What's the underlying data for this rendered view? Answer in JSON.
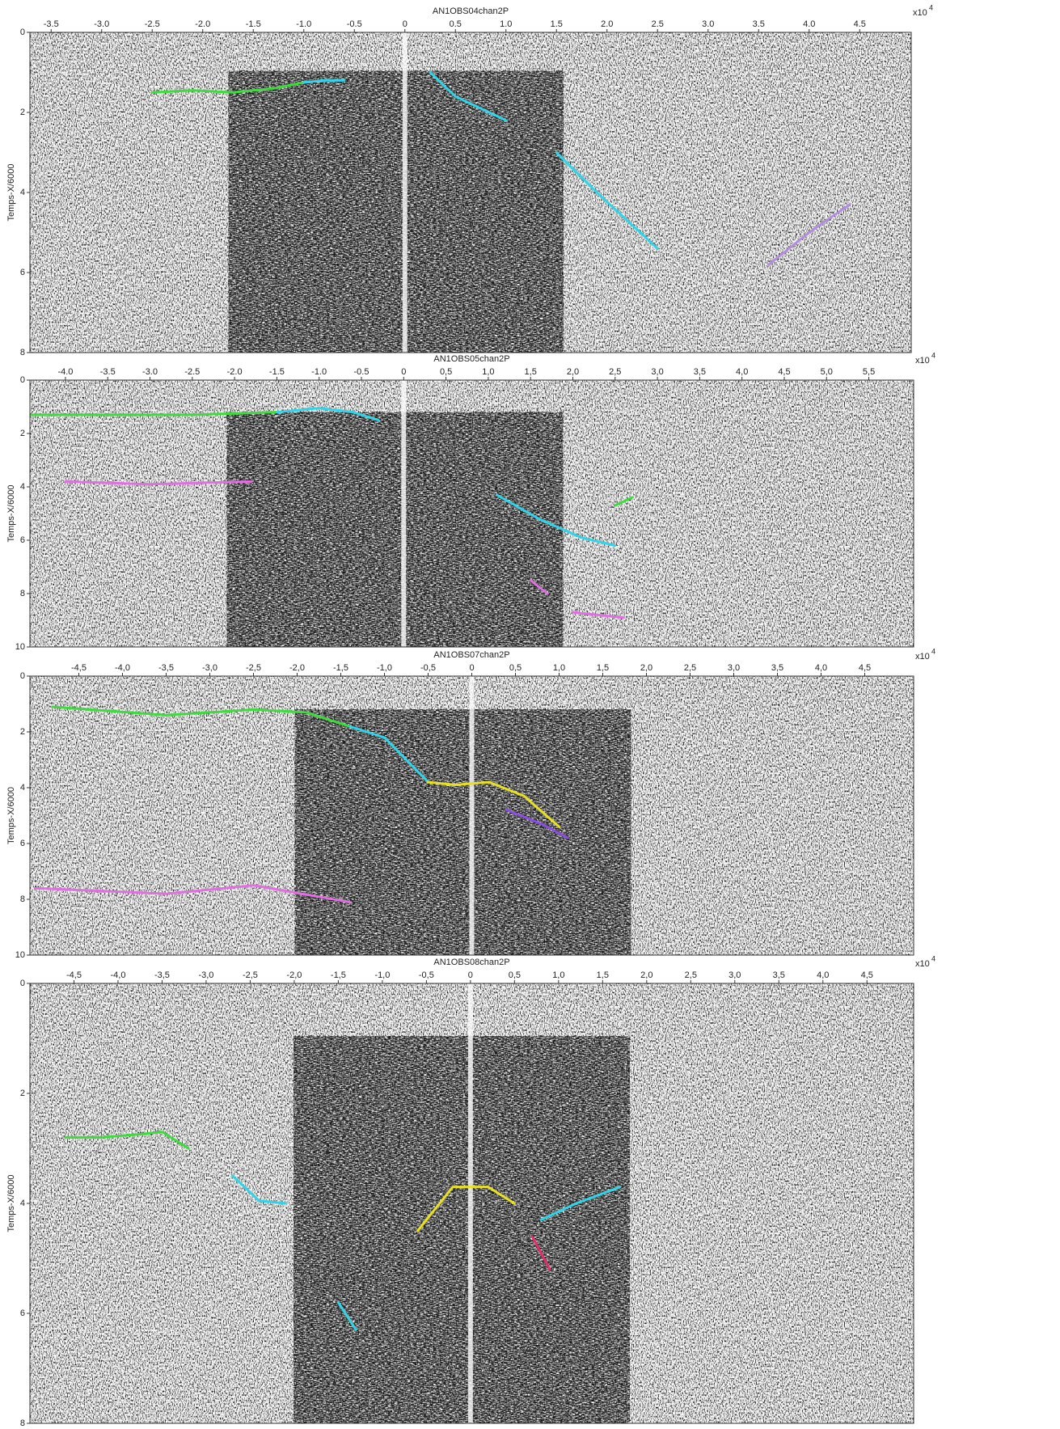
{
  "chart_data": [
    {
      "type": "line",
      "title": "AN1OBS04chan2P",
      "ylabel": "Temps-X/6000",
      "x_scale": "x10",
      "x_scale_exp": "4",
      "xlim": [
        -3.71,
        5.01
      ],
      "ylim": [
        8,
        0
      ],
      "xticks": [
        -3.5,
        {
          "value": -3,
          "label": "-3.0"
        },
        -2.5,
        {
          "value": -2,
          "label": "-2.0"
        },
        -1.5,
        {
          "value": -1,
          "label": "-1.0"
        },
        -0.5,
        0,
        0.5,
        {
          "value": 1,
          "label": "1.0"
        },
        1.5,
        {
          "value": 2,
          "label": "2.0"
        },
        2.5,
        {
          "value": 3,
          "label": "3.0"
        },
        3.5,
        {
          "value": 4,
          "label": "4.0"
        },
        4.5
      ],
      "yticks": [
        0,
        2,
        4,
        6,
        8
      ],
      "series": [
        {
          "color": "#3ddc3d",
          "x": [
            -2.5,
            -2.1,
            -1.7,
            -1.3,
            -1.0
          ],
          "values": [
            1.5,
            1.45,
            1.5,
            1.4,
            1.25
          ]
        },
        {
          "color": "#2fd4e8",
          "x": [
            -1.0,
            -0.8,
            -0.6
          ],
          "values": [
            1.25,
            1.2,
            1.2
          ]
        },
        {
          "color": "#2fd4e8",
          "x": [
            0.25,
            0.5,
            0.75,
            1.0
          ],
          "values": [
            1.0,
            1.6,
            1.9,
            2.2
          ]
        },
        {
          "color": "#2fd4e8",
          "x": [
            1.5,
            1.9,
            2.2,
            2.5
          ],
          "values": [
            3.0,
            4.0,
            4.7,
            5.4
          ]
        },
        {
          "color": "#b38de0",
          "x": [
            3.6,
            4.0,
            4.4
          ],
          "values": [
            5.8,
            5.0,
            4.3
          ]
        }
      ]
    },
    {
      "type": "line",
      "title": "AN1OBS05chan2P",
      "ylabel": "Temps-X/6000",
      "x_scale": "x10",
      "x_scale_exp": "4",
      "xlim": [
        -4.42,
        6.03
      ],
      "ylim": [
        10,
        0
      ],
      "xticks": [
        {
          "value": -4,
          "label": "-4.0"
        },
        -3.5,
        {
          "value": -3,
          "label": "-3.0"
        },
        -2.5,
        {
          "value": -2,
          "label": "-2.0"
        },
        -1.5,
        {
          "value": -1,
          "label": "-1.0"
        },
        -0.5,
        0,
        {
          "value": 0.5,
          "label": "0,5"
        },
        {
          "value": 1,
          "label": "1,0"
        },
        {
          "value": 1.5,
          "label": "1,5"
        },
        {
          "value": 2,
          "label": "2,0"
        },
        {
          "value": 2.5,
          "label": "2,5"
        },
        {
          "value": 3,
          "label": "3,0"
        },
        {
          "value": 3.5,
          "label": "3,5"
        },
        {
          "value": 4,
          "label": "4,0"
        },
        {
          "value": 4.5,
          "label": "4,5"
        },
        {
          "value": 5,
          "label": "5,0"
        },
        {
          "value": 5.5,
          "label": "5,5"
        }
      ],
      "yticks": [
        0,
        2,
        4,
        6,
        8,
        10
      ],
      "series": [
        {
          "color": "#3ddc3d",
          "x": [
            -4.4,
            -3.5,
            -2.5,
            -1.5
          ],
          "values": [
            1.3,
            1.3,
            1.3,
            1.2
          ]
        },
        {
          "color": "#2fd4e8",
          "x": [
            -1.5,
            -1.0,
            -0.6,
            -0.3
          ],
          "values": [
            1.2,
            1.05,
            1.2,
            1.5
          ]
        },
        {
          "color": "#e070e0",
          "x": [
            -4.0,
            -3.0,
            -1.8
          ],
          "values": [
            3.8,
            3.9,
            3.8
          ]
        },
        {
          "color": "#2fd4e8",
          "x": [
            1.1,
            1.6,
            2.1,
            2.5
          ],
          "values": [
            4.3,
            5.2,
            5.9,
            6.2
          ]
        },
        {
          "color": "#3ddc3d",
          "x": [
            2.5,
            2.7
          ],
          "values": [
            4.7,
            4.4
          ]
        },
        {
          "color": "#e070e0",
          "x": [
            1.5,
            1.7
          ],
          "values": [
            7.5,
            8.0
          ]
        },
        {
          "color": "#e070e0",
          "x": [
            2.0,
            2.6
          ],
          "values": [
            8.7,
            8.9
          ]
        }
      ]
    },
    {
      "type": "line",
      "title": "AN1OBS07chan2P",
      "ylabel": "Temps-X/6000",
      "x_scale": "x10",
      "x_scale_exp": "4",
      "xlim": [
        -5.06,
        5.06
      ],
      "ylim": [
        10,
        0
      ],
      "xticks": [
        {
          "value": -4.5,
          "label": "-4,5"
        },
        {
          "value": -4,
          "label": "-4,0"
        },
        {
          "value": -3.5,
          "label": "-3,5"
        },
        {
          "value": -3,
          "label": "-3,0"
        },
        {
          "value": -2.5,
          "label": "-2,5"
        },
        {
          "value": -2,
          "label": "-2,0"
        },
        {
          "value": -1.5,
          "label": "-1,5"
        },
        {
          "value": -1,
          "label": "-1,0"
        },
        {
          "value": -0.5,
          "label": "-0,5"
        },
        0,
        {
          "value": 0.5,
          "label": "0,5"
        },
        {
          "value": 1,
          "label": "1,0"
        },
        {
          "value": 1.5,
          "label": "1,5"
        },
        {
          "value": 2,
          "label": "2,0"
        },
        {
          "value": 2.5,
          "label": "2,5"
        },
        {
          "value": 3,
          "label": "3,0"
        },
        {
          "value": 3.5,
          "label": "3,5"
        },
        {
          "value": 4,
          "label": "4,0"
        },
        {
          "value": 4.5,
          "label": "4,5"
        }
      ],
      "yticks": [
        0,
        2,
        4,
        6,
        8,
        10
      ],
      "series": [
        {
          "color": "#3ddc3d",
          "x": [
            -4.8,
            -3.5,
            -2.5,
            -1.9,
            -1.4
          ],
          "values": [
            1.1,
            1.4,
            1.2,
            1.3,
            1.8
          ]
        },
        {
          "color": "#2fd4e8",
          "x": [
            -1.4,
            -1.0,
            -0.5
          ],
          "values": [
            1.8,
            2.2,
            3.8
          ]
        },
        {
          "color": "#e8e020",
          "x": [
            -0.5,
            -0.2,
            0.2,
            0.6,
            1.0
          ],
          "values": [
            3.8,
            3.9,
            3.8,
            4.3,
            5.4
          ]
        },
        {
          "color": "#e070e0",
          "x": [
            -5.0,
            -3.5,
            -2.5,
            -1.4
          ],
          "values": [
            7.6,
            7.8,
            7.5,
            8.1
          ]
        },
        {
          "color": "#8a4fe0",
          "x": [
            0.4,
            0.8,
            1.1
          ],
          "values": [
            4.8,
            5.3,
            5.8
          ]
        }
      ]
    },
    {
      "type": "line",
      "title": "AN1OBS08chan2P",
      "ylabel": "Temps-X/6000",
      "x_scale": "x10",
      "x_scale_exp": "4",
      "xlim": [
        -5.0,
        5.03
      ],
      "ylim": [
        8,
        0
      ],
      "xticks": [
        {
          "value": -4.5,
          "label": "-4,5"
        },
        {
          "value": -4,
          "label": "-4,0"
        },
        {
          "value": -3.5,
          "label": "-3,5"
        },
        {
          "value": -3,
          "label": "-3,0"
        },
        {
          "value": -2.5,
          "label": "-2,5"
        },
        {
          "value": -2,
          "label": "-2,0"
        },
        {
          "value": -1.5,
          "label": "-1,5"
        },
        {
          "value": -1,
          "label": "-1,0"
        },
        {
          "value": -0.5,
          "label": "-0,5"
        },
        0,
        {
          "value": 0.5,
          "label": "0,5"
        },
        {
          "value": 1,
          "label": "1,0"
        },
        {
          "value": 1.5,
          "label": "1,5"
        },
        {
          "value": 2,
          "label": "2,0"
        },
        {
          "value": 2.5,
          "label": "2,5"
        },
        {
          "value": 3,
          "label": "3,0"
        },
        {
          "value": 3.5,
          "label": "3,5"
        },
        {
          "value": 4,
          "label": "4,0"
        },
        {
          "value": 4.5,
          "label": "4,5"
        }
      ],
      "yticks": [
        0,
        2,
        4,
        6,
        8
      ],
      "series": [
        {
          "color": "#3ddc3d",
          "x": [
            -4.6,
            -4.2,
            -3.8,
            -3.5,
            -3.2
          ],
          "values": [
            2.8,
            2.8,
            2.75,
            2.7,
            3.0
          ]
        },
        {
          "color": "#2fd4e8",
          "x": [
            -2.7,
            -2.4,
            -2.1
          ],
          "values": [
            3.5,
            3.95,
            4.0
          ]
        },
        {
          "color": "#2fd4e8",
          "x": [
            -1.5,
            -1.3
          ],
          "values": [
            5.8,
            6.3
          ]
        },
        {
          "color": "#e8e020",
          "x": [
            -0.6,
            -0.2,
            0.2,
            0.5
          ],
          "values": [
            4.5,
            3.7,
            3.7,
            4.0
          ]
        },
        {
          "color": "#2fd4e8",
          "x": [
            0.8,
            1.2,
            1.7
          ],
          "values": [
            4.3,
            4.0,
            3.7
          ]
        },
        {
          "color": "#e0306a",
          "x": [
            0.7,
            0.9
          ],
          "values": [
            4.6,
            5.2
          ]
        }
      ]
    }
  ]
}
